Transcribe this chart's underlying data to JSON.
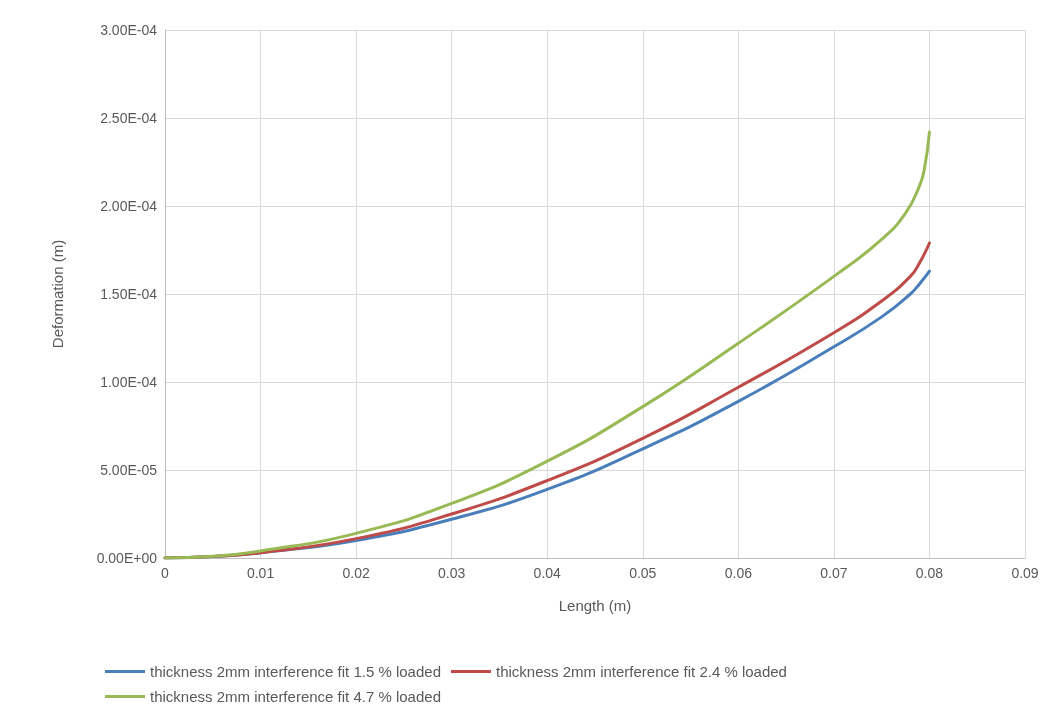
{
  "chart_data": {
    "type": "line",
    "xlabel": "Length (m)",
    "ylabel": "Deformation (m)",
    "xlim": [
      0,
      0.09
    ],
    "xticks": [
      0,
      0.01,
      0.02,
      0.03,
      0.04,
      0.05,
      0.06,
      0.07,
      0.08,
      0.09
    ],
    "ylim": [
      0,
      0.0003
    ],
    "yticks": [
      {
        "value": 0,
        "label": "0.00E+00"
      },
      {
        "value": 5e-05,
        "label": "5.00E-05"
      },
      {
        "value": 0.0001,
        "label": "1.00E-04"
      },
      {
        "value": 0.00015,
        "label": "1.50E-04"
      },
      {
        "value": 0.0002,
        "label": "2.00E-04"
      },
      {
        "value": 0.00025,
        "label": "2.50E-04"
      },
      {
        "value": 0.0003,
        "label": "3.00E-04"
      }
    ],
    "grid": true,
    "legend": "bottom",
    "marker": "none",
    "line_style": "solid",
    "series": [
      {
        "name": "thickness 2mm interference fit 1.5 % loaded",
        "color": "#4a7ebb",
        "x": [
          0,
          0.005,
          0.01,
          0.02,
          0.03,
          0.04,
          0.05,
          0.06,
          0.07,
          0.075,
          0.078,
          0.079,
          0.08
        ],
        "values": [
          0,
          8e-07,
          3e-06,
          1e-05,
          2.2e-05,
          3.9e-05,
          6.2e-05,
          8.9e-05,
          0.00012,
          0.000137,
          0.00015,
          0.000156,
          0.000163
        ]
      },
      {
        "name": "thickness 2mm interference fit 2.4 % loaded",
        "color": "#be4b48",
        "x": [
          0,
          0.005,
          0.01,
          0.02,
          0.03,
          0.04,
          0.05,
          0.06,
          0.07,
          0.075,
          0.078,
          0.079,
          0.08
        ],
        "values": [
          0,
          9e-07,
          3e-06,
          1.1e-05,
          2.5e-05,
          4.4e-05,
          6.8e-05,
          9.7e-05,
          0.000128,
          0.000146,
          0.00016,
          0.000168,
          0.000179
        ]
      },
      {
        "name": "thickness 2mm interference fit 4.7 % loaded",
        "color": "#98b954",
        "x": [
          0,
          0.005,
          0.01,
          0.02,
          0.03,
          0.04,
          0.05,
          0.06,
          0.07,
          0.075,
          0.0775,
          0.079,
          0.0795,
          0.08
        ],
        "values": [
          0,
          1e-06,
          4e-06,
          1.4e-05,
          3.1e-05,
          5.5e-05,
          8.6e-05,
          0.000122,
          0.00016,
          0.000181,
          0.000196,
          0.000212,
          0.000222,
          0.000242
        ]
      }
    ]
  }
}
